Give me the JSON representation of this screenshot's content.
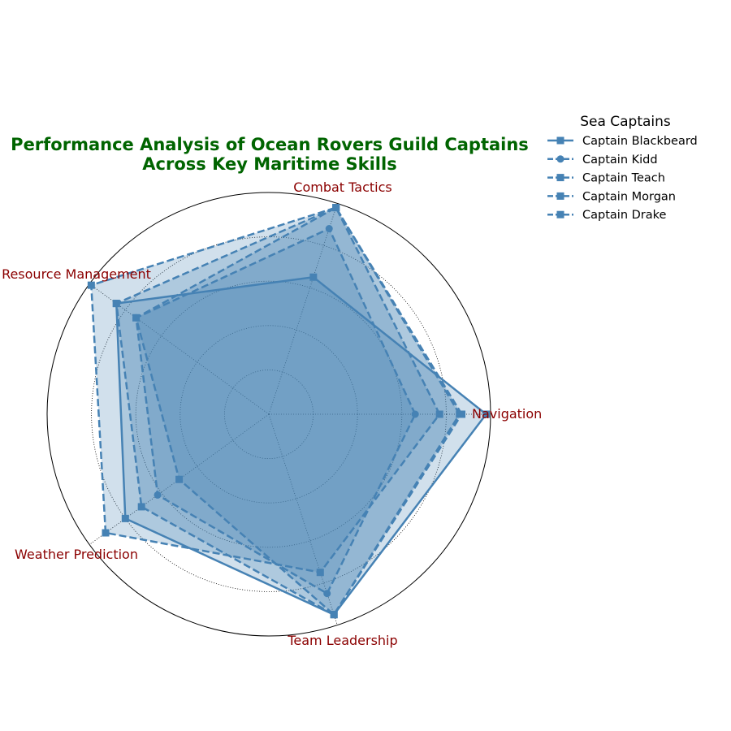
{
  "chart_data": {
    "type": "radar",
    "title": [
      "Performance Analysis of Ocean Rovers Guild Captains",
      "Across Key Maritime Skills"
    ],
    "axes": [
      "Navigation",
      "Combat Tactics",
      "Resource Management",
      "Weather Prediction",
      "Team Leadership"
    ],
    "rlim": [
      0,
      100
    ],
    "grid": true,
    "series": [
      {
        "name": "Captain Blackbeard",
        "marker": "square",
        "linestyle": "solid",
        "values": [
          98,
          65,
          85,
          80,
          95
        ]
      },
      {
        "name": "Captain Kidd",
        "marker": "circle",
        "linestyle": "dashed",
        "values": [
          66,
          88,
          74,
          62,
          85
        ]
      },
      {
        "name": "Captain Teach",
        "marker": "square",
        "linestyle": "dashed",
        "values": [
          77,
          98,
          99,
          91,
          75
        ]
      },
      {
        "name": "Captain Morgan",
        "marker": "square",
        "linestyle": "dashed",
        "values": [
          87,
          98,
          74,
          50,
          95
        ]
      },
      {
        "name": "Captain Drake",
        "marker": "square",
        "linestyle": "dashed",
        "values": [
          86,
          98,
          85,
          71,
          95
        ]
      }
    ],
    "legend": {
      "title": "Sea Captains",
      "placement": "top-right outside"
    }
  },
  "colors": {
    "series_line": "#4682b4",
    "series_fill": "#4682b4",
    "title": "#006400",
    "axis_label": "#8b0000",
    "grid": "#000000"
  }
}
